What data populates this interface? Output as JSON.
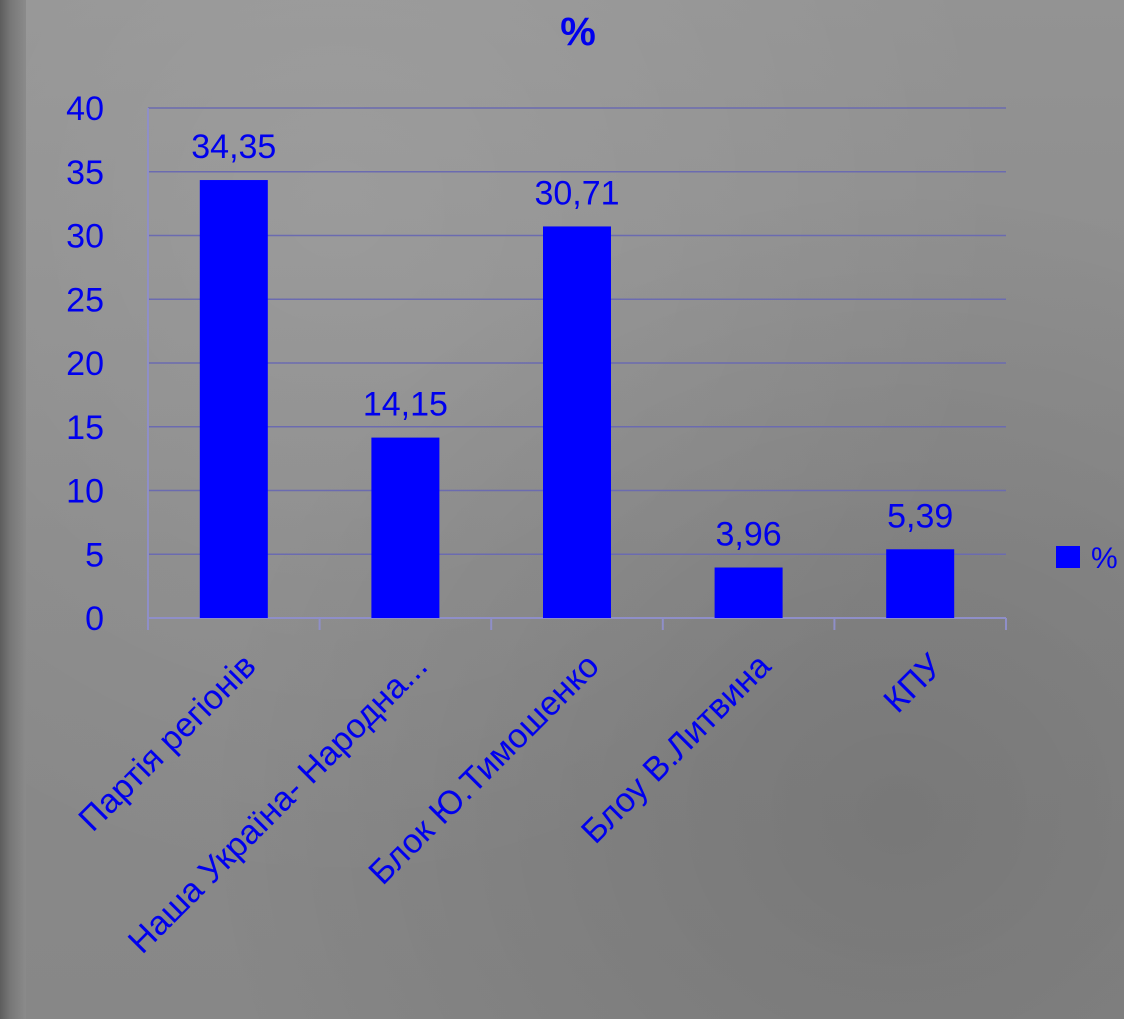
{
  "chart_data": {
    "type": "bar",
    "title": "%",
    "categories": [
      "Партія регіонів",
      "Наша Україна- Народна...",
      "Блок Ю.Тимошенко",
      "Блоу В.Литвина",
      "КПУ"
    ],
    "series": [
      {
        "name": "%",
        "values": [
          34.35,
          14.15,
          30.71,
          3.96,
          5.39
        ],
        "data_labels": [
          "34,35",
          "14,15",
          "30,71",
          "3,96",
          "5,39"
        ],
        "color": "#0000ff"
      }
    ],
    "y_ticks": [
      "0",
      "5",
      "10",
      "15",
      "20",
      "25",
      "30",
      "35",
      "40"
    ],
    "ylim": [
      0,
      40
    ],
    "xlabel": "",
    "ylabel": "",
    "grid": true,
    "legend_position": "right"
  },
  "colors": {
    "bar": "#0000ff",
    "text": "#0000ee",
    "gridline": "#6b6bb0",
    "axis": "#8f8fc8"
  }
}
